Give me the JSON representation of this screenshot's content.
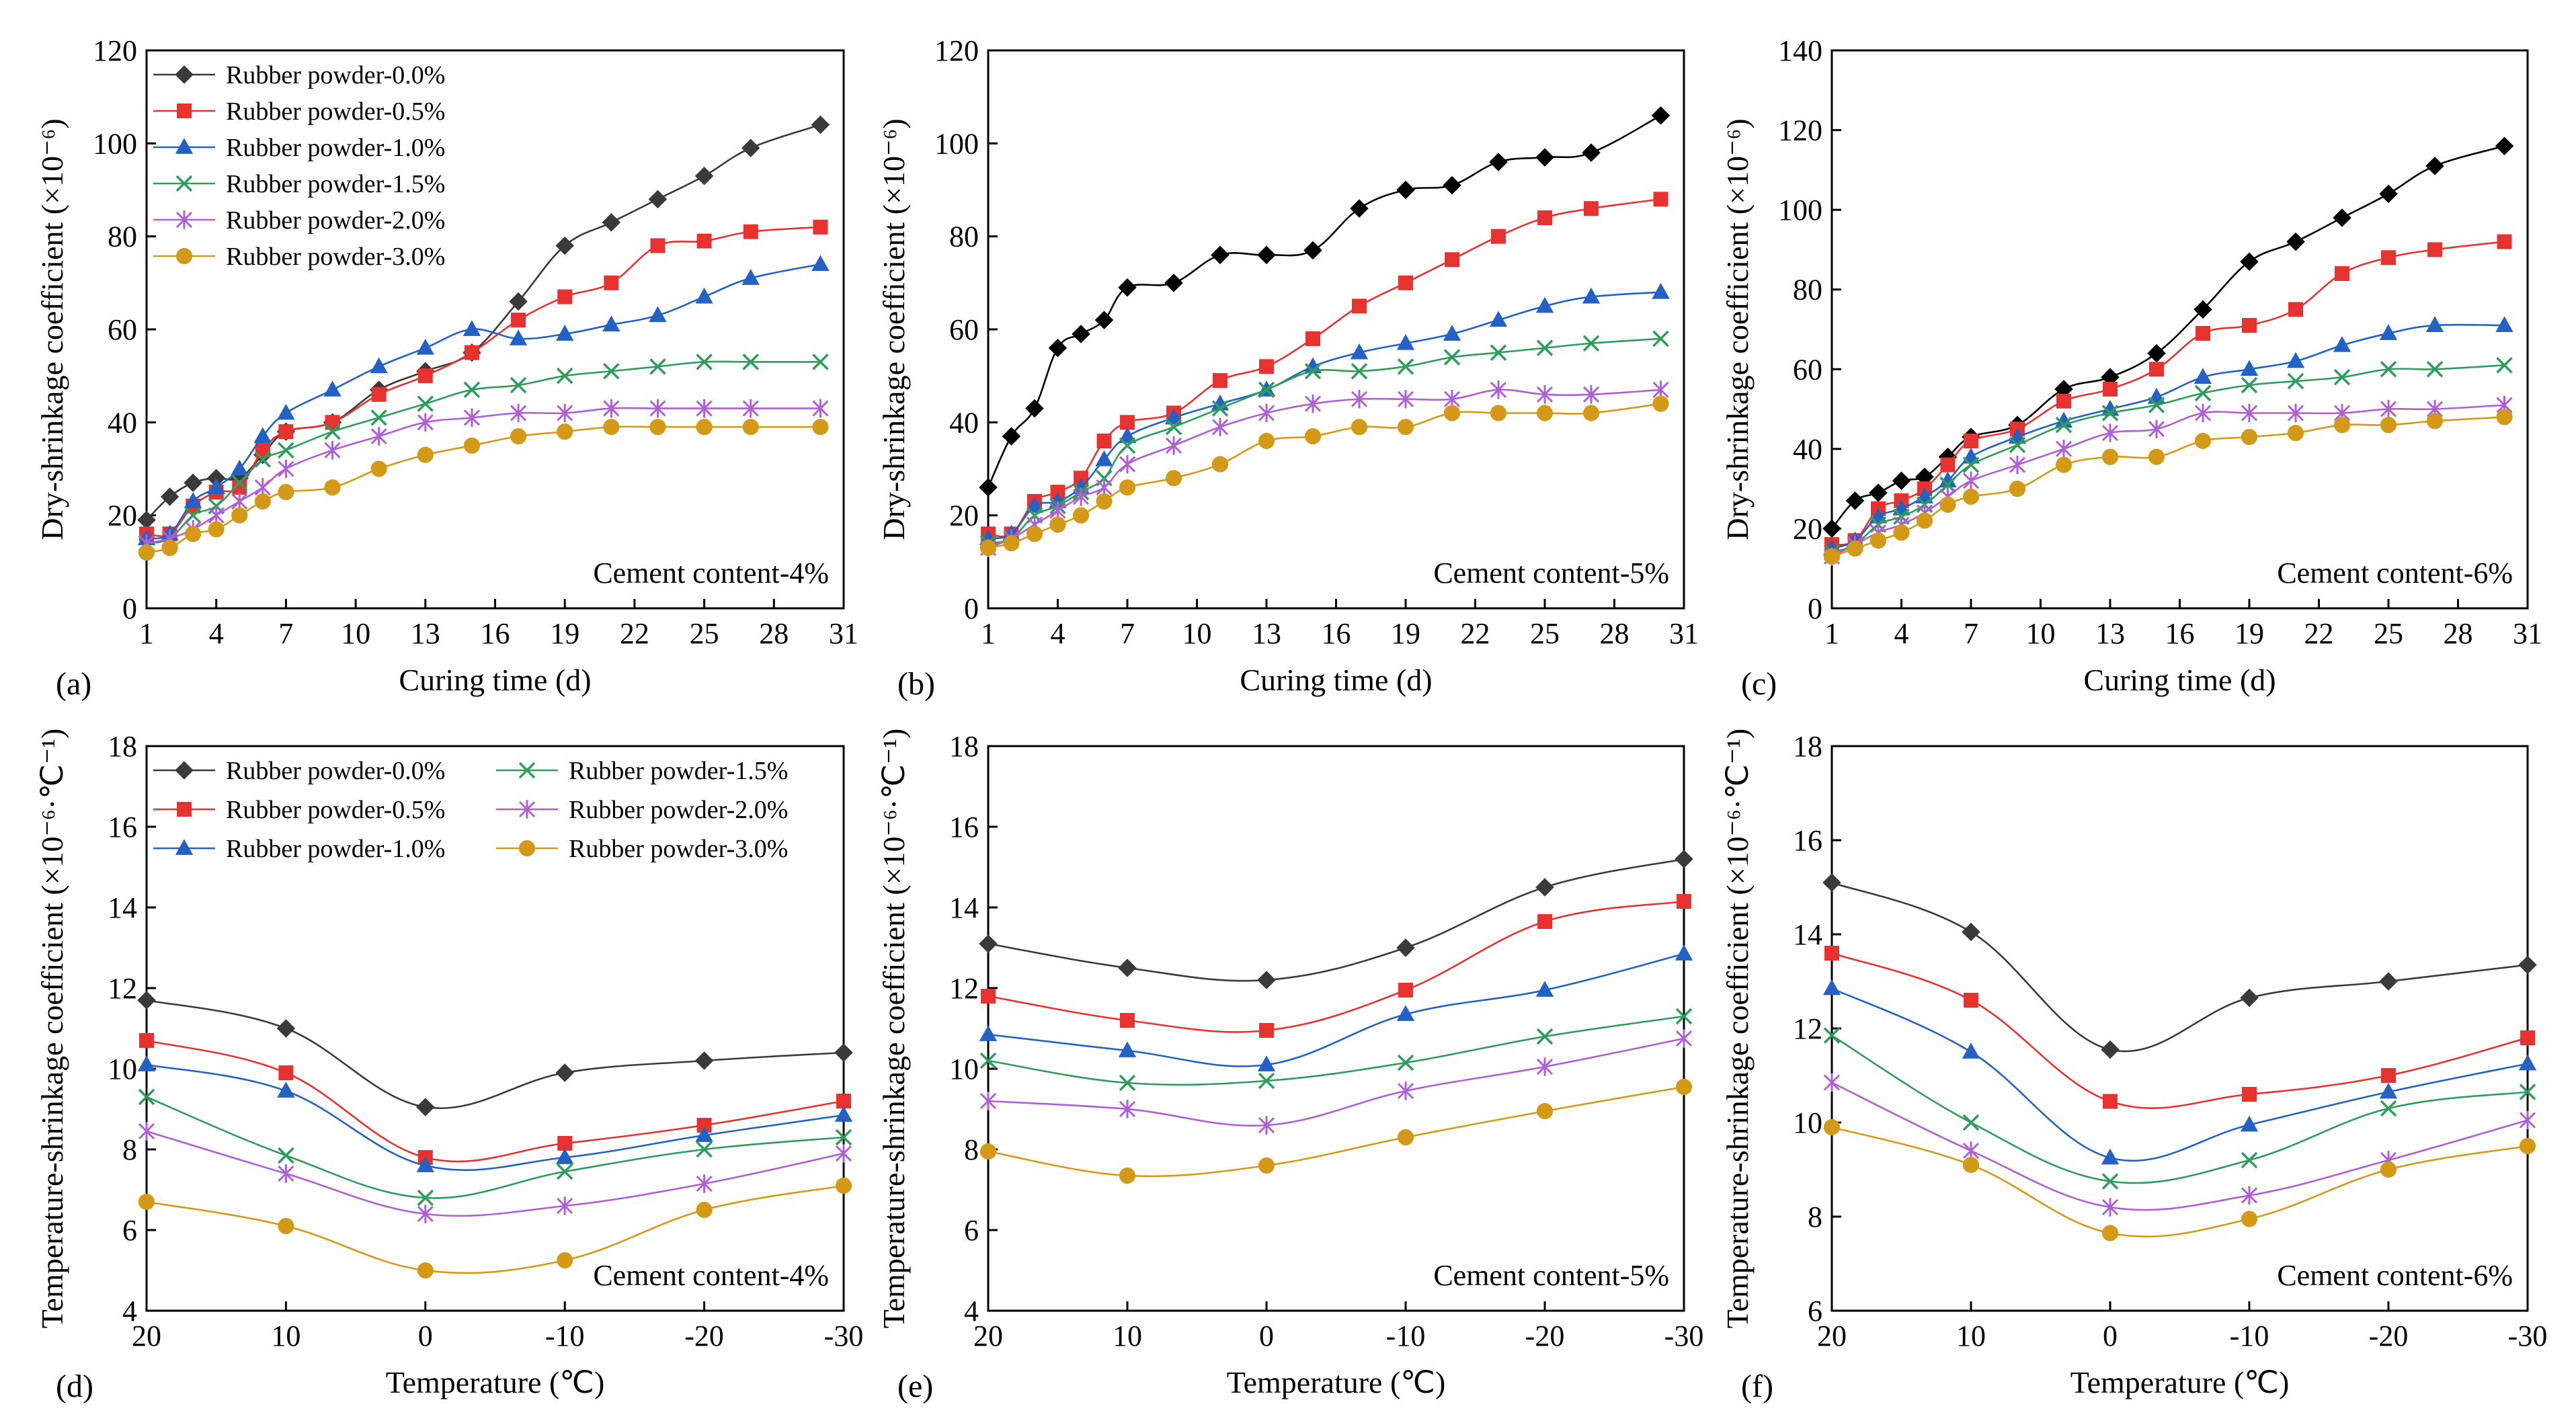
{
  "chart_data": [
    {
      "type": "line",
      "panel_label": "(a)",
      "xlabel": "Curing time (d)",
      "ylabel": "Dry-shrinkage coefficient (×10⁻⁶)",
      "xlim": [
        1,
        31
      ],
      "xticks": [
        "1",
        "4",
        "7",
        "10",
        "13",
        "16",
        "19",
        "22",
        "25",
        "28",
        "31"
      ],
      "ylim": [
        0,
        120
      ],
      "yticks": [
        "0",
        "20",
        "40",
        "60",
        "80",
        "100",
        "120"
      ],
      "annotation": "Cement content-4%",
      "legend": "top-left",
      "x": [
        1,
        2,
        3,
        4,
        5,
        6,
        7,
        9,
        11,
        13,
        15,
        17,
        19,
        21,
        23,
        25,
        27,
        30
      ],
      "series": [
        {
          "name": "Rubber powder-0.0%",
          "color": "#3a3a3a",
          "marker": "diamond",
          "values": [
            19,
            24,
            27,
            28,
            28,
            33,
            38,
            40,
            47,
            51,
            55,
            66,
            78,
            83,
            88,
            93,
            99,
            104
          ]
        },
        {
          "name": "Rubber powder-0.5%",
          "color": "#e8322f",
          "marker": "square",
          "values": [
            16,
            16,
            22,
            25,
            26,
            34,
            38,
            40,
            46,
            50,
            55,
            62,
            67,
            70,
            78,
            79,
            81,
            82
          ]
        },
        {
          "name": "Rubber powder-1.0%",
          "color": "#2362c4",
          "marker": "triangle",
          "values": [
            15,
            16,
            23,
            26,
            30,
            37,
            42,
            47,
            52,
            56,
            60,
            58,
            59,
            61,
            63,
            67,
            71,
            74
          ]
        },
        {
          "name": "Rubber powder-1.5%",
          "color": "#2e9c5a",
          "marker": "x",
          "values": [
            14,
            15,
            20,
            22,
            27,
            32,
            34,
            38,
            41,
            44,
            47,
            48,
            50,
            51,
            52,
            53,
            53,
            53
          ]
        },
        {
          "name": "Rubber powder-2.0%",
          "color": "#b05ed6",
          "marker": "star",
          "values": [
            14,
            15,
            17,
            20,
            23,
            26,
            30,
            34,
            37,
            40,
            41,
            42,
            42,
            43,
            43,
            43,
            43,
            43
          ]
        },
        {
          "name": "Rubber powder-3.0%",
          "color": "#d49a17",
          "marker": "circle",
          "values": [
            12,
            13,
            16,
            17,
            20,
            23,
            25,
            26,
            30,
            33,
            35,
            37,
            38,
            39,
            39,
            39,
            39,
            39
          ]
        }
      ]
    },
    {
      "type": "line",
      "panel_label": "(b)",
      "xlabel": "Curing time (d)",
      "ylabel": "Dry-shrinkage coefficient (×10⁻⁶)",
      "xlim": [
        1,
        31
      ],
      "xticks": [
        "1",
        "4",
        "7",
        "10",
        "13",
        "16",
        "19",
        "22",
        "25",
        "28",
        "31"
      ],
      "ylim": [
        0,
        120
      ],
      "yticks": [
        "0",
        "20",
        "40",
        "60",
        "80",
        "100",
        "120"
      ],
      "annotation": "Cement content-5%",
      "x": [
        1,
        2,
        3,
        4,
        5,
        6,
        7,
        9,
        11,
        13,
        15,
        17,
        19,
        21,
        23,
        25,
        27,
        30
      ],
      "series": [
        {
          "name": "Rubber powder-0.0%",
          "color": "#000000",
          "marker": "diamond",
          "values": [
            26,
            37,
            43,
            56,
            59,
            62,
            69,
            70,
            76,
            76,
            77,
            86,
            90,
            91,
            96,
            97,
            98,
            106
          ]
        },
        {
          "name": "Rubber powder-0.5%",
          "color": "#e8322f",
          "marker": "square",
          "values": [
            16,
            16,
            23,
            25,
            28,
            36,
            40,
            42,
            49,
            52,
            58,
            65,
            70,
            75,
            80,
            84,
            86,
            88
          ]
        },
        {
          "name": "Rubber powder-1.0%",
          "color": "#2362c4",
          "marker": "triangle",
          "values": [
            15,
            16,
            22,
            23,
            26,
            32,
            37,
            41,
            44,
            47,
            52,
            55,
            57,
            59,
            62,
            65,
            67,
            68
          ]
        },
        {
          "name": "Rubber powder-1.5%",
          "color": "#2e9c5a",
          "marker": "x",
          "values": [
            14,
            15,
            20,
            22,
            25,
            28,
            35,
            39,
            43,
            47,
            51,
            51,
            52,
            54,
            55,
            56,
            57,
            58
          ]
        },
        {
          "name": "Rubber powder-2.0%",
          "color": "#b05ed6",
          "marker": "star",
          "values": [
            13,
            15,
            18,
            21,
            24,
            26,
            31,
            35,
            39,
            42,
            44,
            45,
            45,
            45,
            47,
            46,
            46,
            47
          ]
        },
        {
          "name": "Rubber powder-3.0%",
          "color": "#d49a17",
          "marker": "circle",
          "values": [
            13,
            14,
            16,
            18,
            20,
            23,
            26,
            28,
            31,
            36,
            37,
            39,
            39,
            42,
            42,
            42,
            42,
            44
          ]
        }
      ]
    },
    {
      "type": "line",
      "panel_label": "(c)",
      "xlabel": "Curing time (d)",
      "ylabel": "Dry-shrinkage coefficient (×10⁻⁶)",
      "xlim": [
        1,
        31
      ],
      "xticks": [
        "1",
        "4",
        "7",
        "10",
        "13",
        "16",
        "19",
        "22",
        "25",
        "28",
        "31"
      ],
      "ylim": [
        0,
        140
      ],
      "yticks": [
        "0",
        "20",
        "40",
        "60",
        "80",
        "100",
        "120",
        "140"
      ],
      "annotation": "Cement content-6%",
      "x": [
        1,
        2,
        3,
        4,
        5,
        6,
        7,
        9,
        11,
        13,
        15,
        17,
        19,
        21,
        23,
        25,
        27,
        30
      ],
      "series": [
        {
          "name": "Rubber powder-0.0%",
          "color": "#000000",
          "marker": "diamond",
          "values": [
            20,
            27,
            29,
            32,
            33,
            38,
            43,
            46,
            55,
            58,
            64,
            75,
            87,
            92,
            98,
            104,
            111,
            116
          ]
        },
        {
          "name": "Rubber powder-0.5%",
          "color": "#e8322f",
          "marker": "square",
          "values": [
            16,
            17,
            25,
            27,
            30,
            36,
            42,
            45,
            52,
            55,
            60,
            69,
            71,
            75,
            84,
            88,
            90,
            92
          ]
        },
        {
          "name": "Rubber powder-1.0%",
          "color": "#2362c4",
          "marker": "triangle",
          "values": [
            15,
            17,
            23,
            25,
            28,
            32,
            38,
            43,
            47,
            50,
            53,
            58,
            60,
            62,
            66,
            69,
            71,
            71
          ]
        },
        {
          "name": "Rubber powder-1.5%",
          "color": "#2e9c5a",
          "marker": "x",
          "values": [
            14,
            16,
            21,
            23,
            26,
            31,
            36,
            41,
            46,
            49,
            51,
            54,
            56,
            57,
            58,
            60,
            60,
            61
          ]
        },
        {
          "name": "Rubber powder-2.0%",
          "color": "#b05ed6",
          "marker": "star",
          "values": [
            13,
            16,
            19,
            21,
            24,
            28,
            32,
            36,
            40,
            44,
            45,
            49,
            49,
            49,
            49,
            50,
            50,
            51
          ]
        },
        {
          "name": "Rubber powder-3.0%",
          "color": "#d49a17",
          "marker": "circle",
          "values": [
            13,
            15,
            17,
            19,
            22,
            26,
            28,
            30,
            36,
            38,
            38,
            42,
            43,
            44,
            46,
            46,
            47,
            48
          ]
        }
      ]
    },
    {
      "type": "line",
      "panel_label": "(d)",
      "xlabel": "Temperature (℃)",
      "ylabel": "Temperature-shrinkage coefficient (×10⁻⁶·℃⁻¹)",
      "xlim": [
        20,
        -30
      ],
      "xticks": [
        "20",
        "10",
        "0",
        "-10",
        "-20",
        "-30"
      ],
      "ylim": [
        4,
        18
      ],
      "yticks": [
        "4",
        "6",
        "8",
        "10",
        "12",
        "14",
        "16",
        "18"
      ],
      "annotation": "Cement content-4%",
      "legend": "top-left",
      "x": [
        20,
        10,
        0,
        -10,
        -20,
        -30
      ],
      "series": [
        {
          "name": "Rubber powder-0.0%",
          "color": "#3a3a3a",
          "marker": "diamond",
          "values": [
            11.7,
            11.0,
            9.05,
            9.9,
            10.2,
            10.4
          ]
        },
        {
          "name": "Rubber powder-0.5%",
          "color": "#e8322f",
          "marker": "square",
          "values": [
            10.7,
            9.9,
            7.8,
            8.15,
            8.6,
            9.2
          ]
        },
        {
          "name": "Rubber powder-1.0%",
          "color": "#2362c4",
          "marker": "triangle",
          "values": [
            10.1,
            9.45,
            7.6,
            7.8,
            8.35,
            8.85
          ]
        },
        {
          "name": "Rubber powder-1.5%",
          "color": "#2e9c5a",
          "marker": "x",
          "values": [
            9.3,
            7.85,
            6.8,
            7.45,
            8.0,
            8.3
          ]
        },
        {
          "name": "Rubber powder-2.0%",
          "color": "#b05ed6",
          "marker": "star",
          "values": [
            8.45,
            7.4,
            6.4,
            6.6,
            7.15,
            7.9
          ]
        },
        {
          "name": "Rubber powder-3.0%",
          "color": "#d49a17",
          "marker": "circle",
          "values": [
            6.7,
            6.1,
            5.0,
            5.25,
            6.5,
            7.1
          ]
        }
      ]
    },
    {
      "type": "line",
      "panel_label": "(e)",
      "xlabel": "Temperature (℃)",
      "ylabel": "Temperature-shrinkage coefficient (×10⁻⁶·℃⁻¹)",
      "xlim": [
        20,
        -30
      ],
      "xticks": [
        "20",
        "10",
        "0",
        "-10",
        "-20",
        "-30"
      ],
      "ylim": [
        4,
        18
      ],
      "yticks": [
        "4",
        "6",
        "8",
        "10",
        "12",
        "14",
        "16",
        "18"
      ],
      "annotation": "Cement content-5%",
      "x": [
        20,
        10,
        0,
        -10,
        -20,
        -30
      ],
      "series": [
        {
          "name": "Rubber powder-0.0%",
          "color": "#3a3a3a",
          "marker": "diamond",
          "values": [
            13.1,
            12.5,
            12.2,
            13.0,
            14.5,
            15.2
          ]
        },
        {
          "name": "Rubber powder-0.5%",
          "color": "#e8322f",
          "marker": "square",
          "values": [
            11.8,
            11.2,
            10.95,
            11.95,
            13.65,
            14.15
          ]
        },
        {
          "name": "Rubber powder-1.0%",
          "color": "#2362c4",
          "marker": "triangle",
          "values": [
            10.85,
            10.45,
            10.1,
            11.35,
            11.95,
            12.85
          ]
        },
        {
          "name": "Rubber powder-1.5%",
          "color": "#2e9c5a",
          "marker": "x",
          "values": [
            10.2,
            9.65,
            9.7,
            10.15,
            10.8,
            11.3
          ]
        },
        {
          "name": "Rubber powder-2.0%",
          "color": "#b05ed6",
          "marker": "star",
          "values": [
            9.2,
            9.0,
            8.6,
            9.45,
            10.05,
            10.75
          ]
        },
        {
          "name": "Rubber powder-3.0%",
          "color": "#d49a17",
          "marker": "circle",
          "values": [
            7.95,
            7.35,
            7.6,
            8.3,
            8.95,
            9.55
          ]
        }
      ]
    },
    {
      "type": "line",
      "panel_label": "(f)",
      "xlabel": "Temperature (℃)",
      "ylabel": "Temperature-shrinkage coefficient (×10⁻⁶·℃⁻¹)",
      "xlim": [
        20,
        -30
      ],
      "xticks": [
        "20",
        "10",
        "0",
        "-10",
        "-20",
        "-30"
      ],
      "ylim": [
        6,
        18
      ],
      "yticks": [
        "6",
        "8",
        "10",
        "12",
        "14",
        "16",
        "18"
      ],
      "annotation": "Cement content-6%",
      "x": [
        20,
        10,
        0,
        -10,
        -20,
        -30
      ],
      "series": [
        {
          "name": "Rubber powder-0.0%",
          "color": "#3a3a3a",
          "marker": "diamond",
          "values": [
            15.1,
            14.05,
            11.55,
            12.65,
            13.0,
            13.35
          ]
        },
        {
          "name": "Rubber powder-0.5%",
          "color": "#e8322f",
          "marker": "square",
          "values": [
            13.6,
            12.6,
            10.45,
            10.6,
            11.0,
            11.8
          ]
        },
        {
          "name": "Rubber powder-1.0%",
          "color": "#2362c4",
          "marker": "triangle",
          "values": [
            12.85,
            11.5,
            9.25,
            9.95,
            10.65,
            11.25
          ]
        },
        {
          "name": "Rubber powder-1.5%",
          "color": "#2e9c5a",
          "marker": "x",
          "values": [
            11.85,
            10.0,
            8.75,
            9.2,
            10.3,
            10.65
          ]
        },
        {
          "name": "Rubber powder-2.0%",
          "color": "#b05ed6",
          "marker": "star",
          "values": [
            10.85,
            9.4,
            8.2,
            8.45,
            9.2,
            10.05
          ]
        },
        {
          "name": "Rubber powder-3.0%",
          "color": "#d49a17",
          "marker": "circle",
          "values": [
            9.9,
            9.1,
            7.65,
            7.95,
            9.0,
            9.5
          ]
        }
      ]
    }
  ]
}
